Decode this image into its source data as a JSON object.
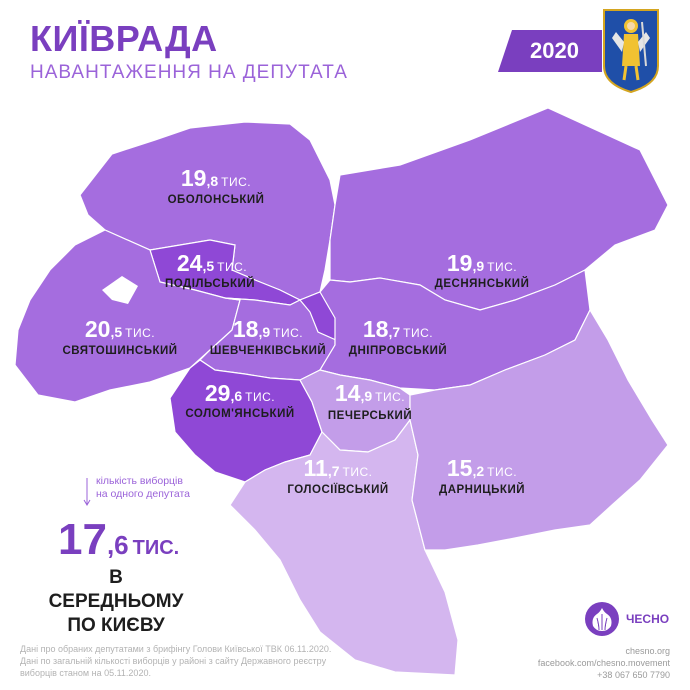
{
  "header": {
    "title": "КИЇВРАДА",
    "subtitle": "НАВАНТАЖЕННЯ НА ДЕПУТАТА",
    "year": "2020"
  },
  "colors": {
    "brand": "#7a3fbf",
    "accent_light": "#9b63d9",
    "district_dark": "#8f48d6",
    "district_mid": "#a56ddf",
    "district_light": "#c39de9",
    "district_lighter": "#d4b6ef"
  },
  "districts": [
    {
      "id": "obolonskyi",
      "name": "ОБОЛОНСЬКИЙ",
      "value_int": "19",
      "value_dec": ",8",
      "unit": "ТИС."
    },
    {
      "id": "podilskyi",
      "name": "ПОДІЛЬСЬКИЙ",
      "value_int": "24",
      "value_dec": ",5",
      "unit": "ТИС."
    },
    {
      "id": "desnianskyi",
      "name": "ДЕСНЯНСЬКИЙ",
      "value_int": "19",
      "value_dec": ",9",
      "unit": "ТИС."
    },
    {
      "id": "sviatoshynskyi",
      "name": "СВЯТОШИНСЬКИЙ",
      "value_int": "20",
      "value_dec": ",5",
      "unit": "ТИС."
    },
    {
      "id": "shevchenkivskyi",
      "name": "ШЕВЧЕНКІВСЬКИЙ",
      "value_int": "18",
      "value_dec": ",9",
      "unit": "ТИС."
    },
    {
      "id": "dniprovskyi",
      "name": "ДНІПРОВСЬКИЙ",
      "value_int": "18",
      "value_dec": ",7",
      "unit": "ТИС."
    },
    {
      "id": "solomianskyi",
      "name": "СОЛОМ'ЯНСЬКИЙ",
      "value_int": "29",
      "value_dec": ",6",
      "unit": "ТИС."
    },
    {
      "id": "pecherskyi",
      "name": "ПЕЧЕРСЬКИЙ",
      "value_int": "14",
      "value_dec": ",9",
      "unit": "ТИС."
    },
    {
      "id": "holosiivskyi",
      "name": "ГОЛОСІЇВСЬКИЙ",
      "value_int": "11",
      "value_dec": ",7",
      "unit": "ТИС."
    },
    {
      "id": "darnytskyi",
      "name": "ДАРНИЦЬКИЙ",
      "value_int": "15",
      "value_dec": ",2",
      "unit": "ТИС."
    }
  ],
  "average": {
    "note_line1": "кількість виборців",
    "note_line2": "на одного депутата",
    "value_int": "17",
    "value_dec": ",6",
    "unit": "ТИС.",
    "caption_line1": "В СЕРЕДНЬОМУ",
    "caption_line2": "ПО КИЄВУ"
  },
  "footer": {
    "source_line1": "Дані про обраних депутатами з брифінгу Голови Київської ТВК 06.11.2020.",
    "source_line2": "Дані по загальній кількості виборців у районі з сайту Державного реєстру",
    "source_line3": "виборців станом на 05.11.2020.",
    "brand_name": "ЧЕСНО",
    "site": "chesno.org",
    "facebook": "facebook.com/chesno.movement",
    "phone": "+38 067 650 7790"
  }
}
